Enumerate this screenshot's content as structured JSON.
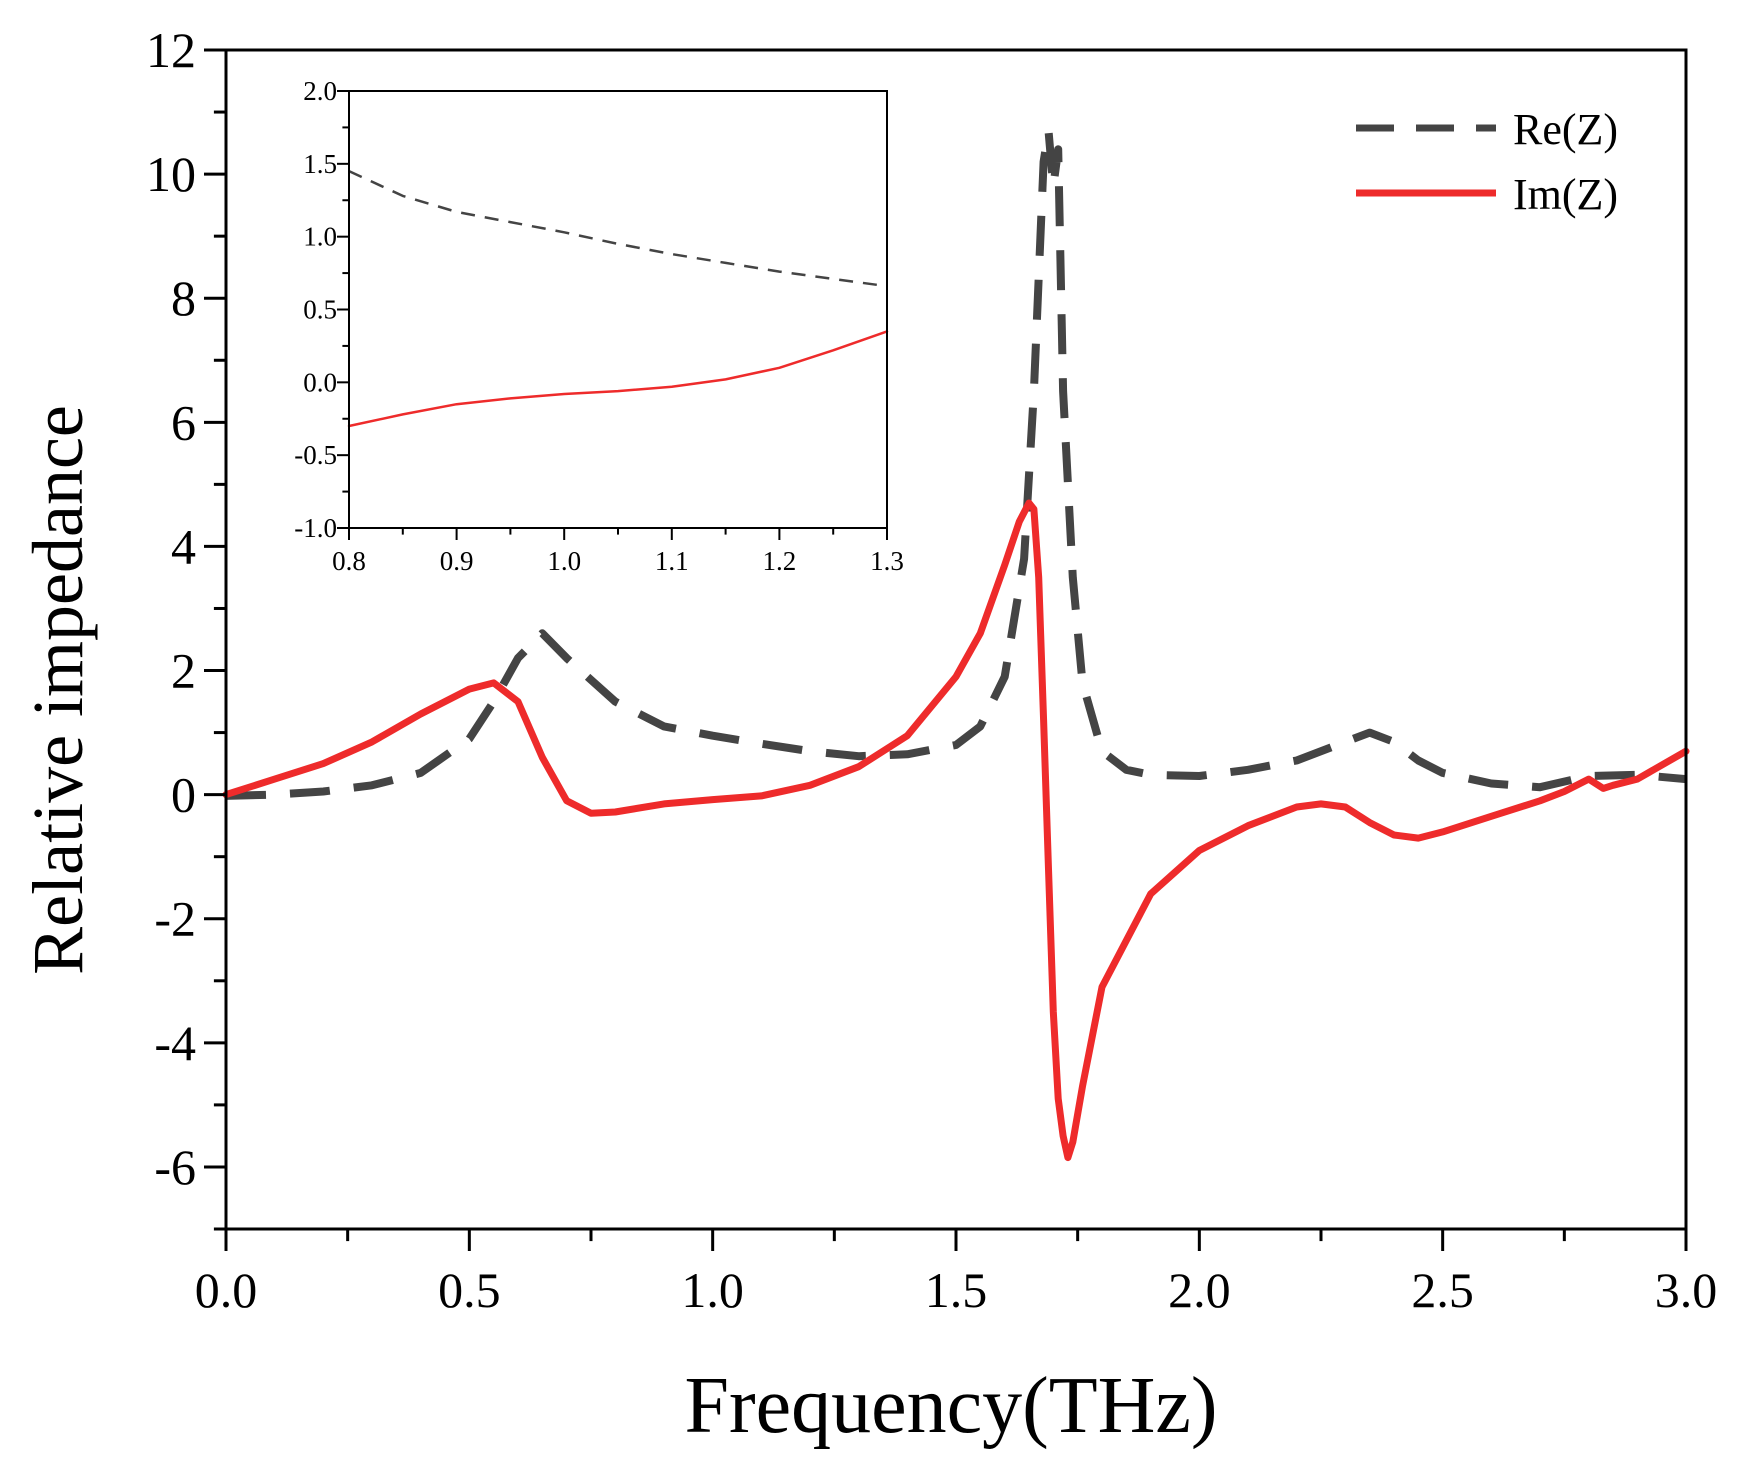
{
  "chart_data": [
    {
      "id": "main",
      "type": "line",
      "title": "",
      "xlabel": "Frequency(THz)",
      "ylabel": "Relative impedance",
      "xlim": [
        0.0,
        3.0
      ],
      "ylim": [
        -7,
        12
      ],
      "xticks": [
        0.0,
        0.5,
        1.0,
        1.5,
        2.0,
        2.5,
        3.0
      ],
      "xtick_labels": [
        "0.0",
        "0.5",
        "1.0",
        "1.5",
        "2.0",
        "2.5",
        "3.0"
      ],
      "yticks": [
        -6,
        -4,
        -2,
        0,
        2,
        4,
        6,
        8,
        10,
        12
      ],
      "ytick_labels": [
        "-6",
        "-4",
        "-2",
        "0",
        "2",
        "4",
        "6",
        "8",
        "10",
        "12"
      ],
      "grid": false,
      "legend_position": "top-right",
      "series": [
        {
          "name": "Re(Z)",
          "style": "dashed",
          "color": "#444444",
          "x": [
            0.0,
            0.1,
            0.2,
            0.3,
            0.4,
            0.5,
            0.55,
            0.6,
            0.65,
            0.7,
            0.8,
            0.9,
            1.0,
            1.1,
            1.2,
            1.3,
            1.4,
            1.5,
            1.55,
            1.6,
            1.64,
            1.66,
            1.68,
            1.69,
            1.7,
            1.71,
            1.72,
            1.74,
            1.76,
            1.8,
            1.85,
            1.9,
            2.0,
            2.1,
            2.2,
            2.3,
            2.35,
            2.4,
            2.45,
            2.5,
            2.6,
            2.7,
            2.8,
            2.9,
            3.0
          ],
          "values": [
            -0.02,
            0.0,
            0.05,
            0.15,
            0.35,
            0.9,
            1.5,
            2.2,
            2.6,
            2.2,
            1.5,
            1.1,
            0.95,
            0.82,
            0.7,
            0.62,
            0.65,
            0.8,
            1.1,
            1.9,
            3.8,
            6.5,
            10.2,
            10.7,
            9.8,
            10.4,
            6.5,
            3.5,
            1.8,
            0.7,
            0.4,
            0.32,
            0.3,
            0.4,
            0.55,
            0.85,
            1.0,
            0.85,
            0.55,
            0.35,
            0.18,
            0.12,
            0.3,
            0.32,
            0.25
          ]
        },
        {
          "name": "Im(Z)",
          "style": "solid",
          "color": "#ee2b2b",
          "x": [
            0.0,
            0.1,
            0.2,
            0.3,
            0.4,
            0.5,
            0.55,
            0.6,
            0.65,
            0.7,
            0.75,
            0.8,
            0.9,
            1.0,
            1.1,
            1.2,
            1.3,
            1.4,
            1.5,
            1.55,
            1.6,
            1.63,
            1.65,
            1.66,
            1.67,
            1.68,
            1.69,
            1.7,
            1.71,
            1.72,
            1.73,
            1.74,
            1.76,
            1.8,
            1.9,
            2.0,
            2.1,
            2.2,
            2.25,
            2.3,
            2.35,
            2.4,
            2.45,
            2.5,
            2.6,
            2.7,
            2.75,
            2.8,
            2.83,
            2.85,
            2.9,
            3.0
          ],
          "values": [
            0.0,
            0.25,
            0.5,
            0.85,
            1.3,
            1.7,
            1.8,
            1.5,
            0.6,
            -0.1,
            -0.3,
            -0.28,
            -0.15,
            -0.08,
            -0.02,
            0.15,
            0.45,
            0.95,
            1.9,
            2.6,
            3.7,
            4.4,
            4.7,
            4.6,
            3.5,
            1.2,
            -1.2,
            -3.5,
            -4.9,
            -5.5,
            -5.85,
            -5.6,
            -4.7,
            -3.1,
            -1.6,
            -0.9,
            -0.5,
            -0.2,
            -0.15,
            -0.2,
            -0.45,
            -0.65,
            -0.7,
            -0.6,
            -0.35,
            -0.1,
            0.05,
            0.25,
            0.1,
            0.15,
            0.25,
            0.7
          ]
        }
      ]
    },
    {
      "id": "inset",
      "type": "line",
      "title": "",
      "xlabel": "",
      "ylabel": "",
      "xlim": [
        0.8,
        1.3
      ],
      "ylim": [
        -1.0,
        2.0
      ],
      "xticks": [
        0.8,
        0.9,
        1.0,
        1.1,
        1.2,
        1.3
      ],
      "xtick_labels": [
        "0.8",
        "0.9",
        "1.0",
        "1.1",
        "1.2",
        "1.3"
      ],
      "yticks": [
        -1.0,
        -0.5,
        0.0,
        0.5,
        1.0,
        1.5,
        2.0
      ],
      "ytick_labels": [
        "-1.0",
        "-0.5",
        "0.0",
        "0.5",
        "1.0",
        "1.5",
        "2.0"
      ],
      "grid": false,
      "series": [
        {
          "name": "Re(Z)",
          "style": "dashed",
          "color": "#444444",
          "x": [
            0.8,
            0.85,
            0.9,
            0.95,
            1.0,
            1.05,
            1.1,
            1.15,
            1.2,
            1.25,
            1.3
          ],
          "values": [
            1.45,
            1.28,
            1.17,
            1.1,
            1.03,
            0.95,
            0.88,
            0.82,
            0.76,
            0.71,
            0.66
          ]
        },
        {
          "name": "Im(Z)",
          "style": "solid",
          "color": "#ee2b2b",
          "x": [
            0.8,
            0.85,
            0.9,
            0.95,
            1.0,
            1.05,
            1.1,
            1.15,
            1.2,
            1.25,
            1.3
          ],
          "values": [
            -0.3,
            -0.22,
            -0.15,
            -0.11,
            -0.08,
            -0.06,
            -0.03,
            0.02,
            0.1,
            0.22,
            0.35
          ]
        }
      ]
    }
  ]
}
